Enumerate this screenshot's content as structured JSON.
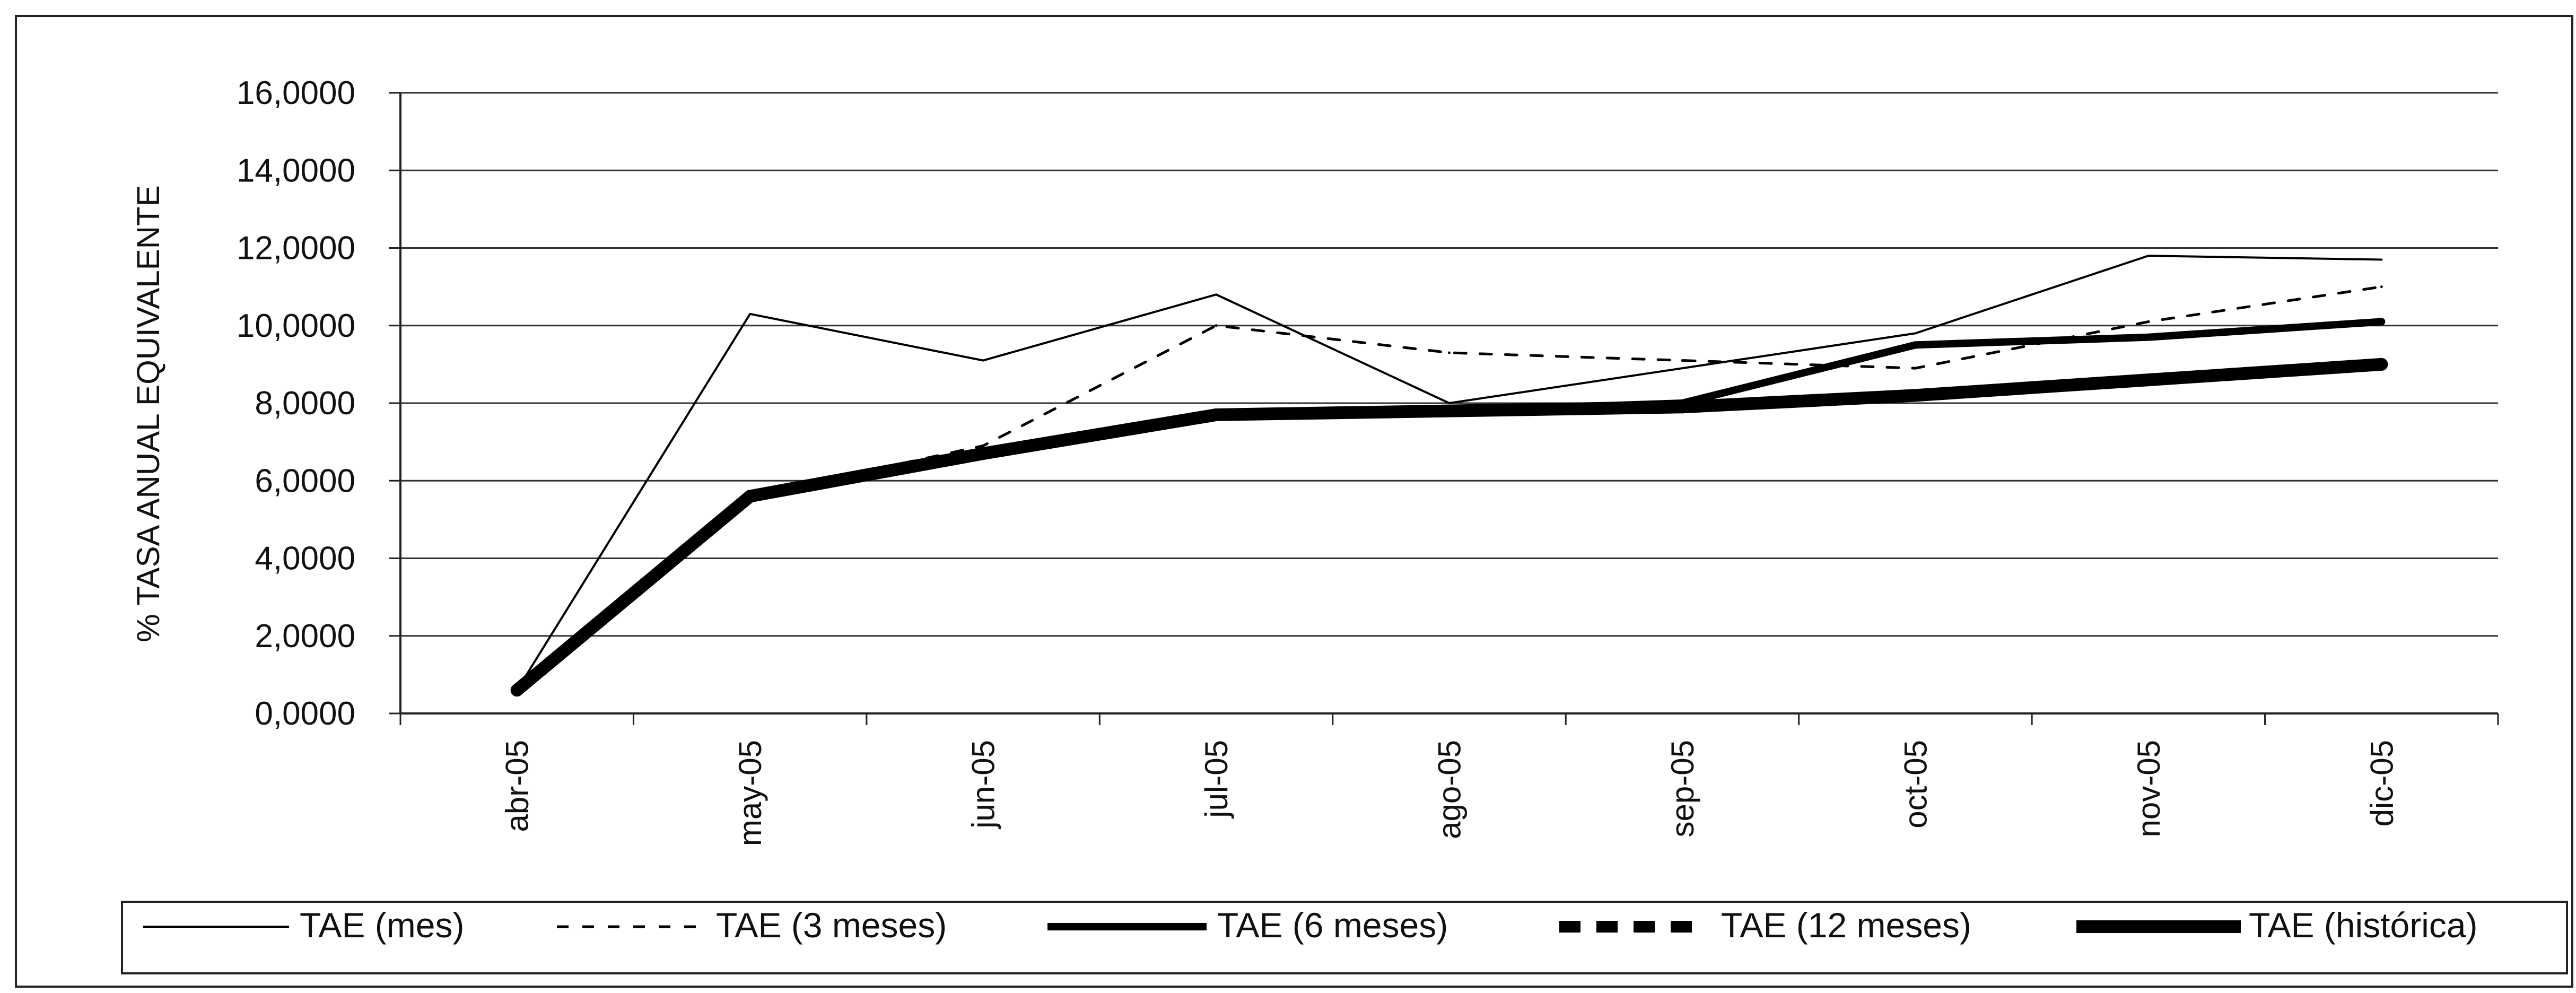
{
  "chart_data": {
    "type": "line",
    "title": "",
    "xlabel": "",
    "ylabel": "% TASA ANUAL EQUIVALENTE",
    "ylim": [
      0,
      16
    ],
    "yticks": [
      "0,0000",
      "2,0000",
      "4,0000",
      "6,0000",
      "8,0000",
      "10,0000",
      "12,0000",
      "14,0000",
      "16,0000"
    ],
    "categories": [
      "abr-05",
      "may-05",
      "jun-05",
      "jul-05",
      "ago-05",
      "sep-05",
      "oct-05",
      "nov-05",
      "dic-05"
    ],
    "grid": true,
    "legend_position": "bottom",
    "series": [
      {
        "name": "TAE (mes)",
        "style": "thin-solid",
        "color": "#000000",
        "values": [
          0.6,
          10.3,
          9.1,
          10.8,
          8.0,
          8.9,
          9.8,
          11.8,
          11.7
        ]
      },
      {
        "name": "TAE (3 meses)",
        "style": "dashed",
        "color": "#000000",
        "values": [
          0.6,
          5.6,
          6.9,
          10.0,
          9.3,
          9.1,
          8.9,
          10.1,
          11.0
        ]
      },
      {
        "name": "TAE (6 meses)",
        "style": "medium-solid",
        "color": "#000000",
        "values": [
          0.6,
          5.6,
          6.7,
          7.7,
          7.8,
          8.0,
          9.5,
          9.7,
          10.1
        ]
      },
      {
        "name": "TAE (12 meses)",
        "style": "thick-dashed",
        "color": "#000000",
        "values": [
          0.6,
          5.6,
          6.7,
          7.7,
          7.8,
          7.9,
          8.2,
          8.6,
          9.0
        ]
      },
      {
        "name": "TAE (histórica)",
        "style": "thick-solid",
        "color": "#000000",
        "values": [
          0.6,
          5.6,
          6.7,
          7.7,
          7.8,
          7.9,
          8.2,
          8.6,
          9.0
        ]
      }
    ]
  }
}
